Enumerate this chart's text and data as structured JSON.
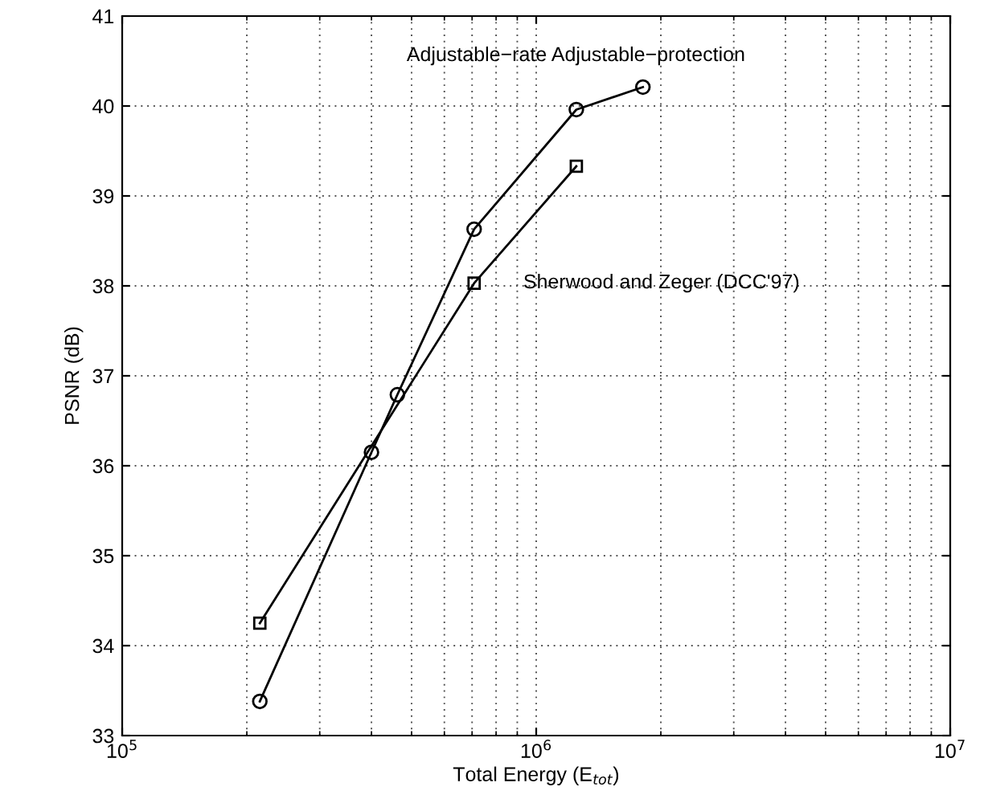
{
  "chart_data": {
    "type": "line",
    "xlabel": "Total Energy (E$_{tot}$)",
    "ylabel": "PSNR (dB)",
    "log": "x",
    "xlim": [
      100000,
      10000000
    ],
    "xticks": [
      {
        "value": 100000,
        "label": "10$^{5}$"
      },
      {
        "value": 1000000,
        "label": "10$^{6}$"
      },
      {
        "value": 10000000,
        "label": "10$^{7}$"
      }
    ],
    "ylim": [
      33,
      41
    ],
    "yticks": [
      33,
      34,
      35,
      36,
      37,
      38,
      39,
      40,
      41
    ],
    "grid": true,
    "line_style": "solid",
    "series": [
      {
        "name": "Adjustable−rate Adjustable−protection",
        "color": "#000000",
        "marker": "circle",
        "x": [
          215000,
          400000,
          462000,
          708000,
          1250000,
          1810000
        ],
        "values": [
          33.38,
          36.15,
          36.79,
          38.63,
          39.96,
          40.21
        ]
      },
      {
        "name": "Sherwood and Zeger (DCC'97)",
        "color": "#000000",
        "marker": "square",
        "x": [
          215000,
          708000,
          1250000
        ],
        "values": [
          34.25,
          38.03,
          39.33
        ]
      }
    ]
  }
}
